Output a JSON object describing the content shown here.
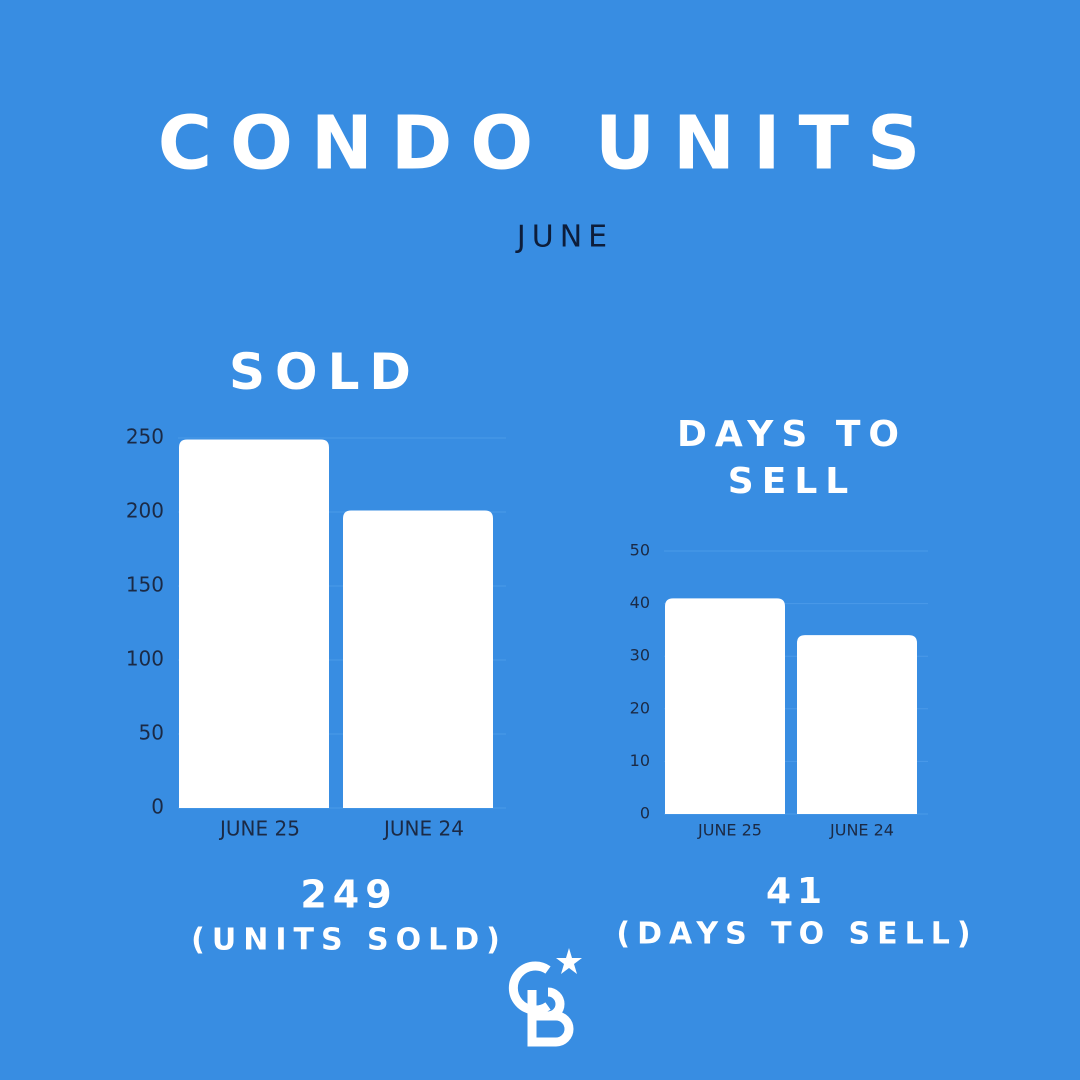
{
  "header": {
    "title": "CONDO UNITS",
    "subtitle": "JUNE"
  },
  "chart_data": [
    {
      "type": "bar",
      "title": "SOLD",
      "categories": [
        "JUNE 25",
        "JUNE 24"
      ],
      "values": [
        249,
        201
      ],
      "color": "#ffffff",
      "ylim": [
        0,
        250
      ],
      "yticks": [
        0,
        50,
        100,
        150,
        200,
        250
      ],
      "grid": true,
      "summary": {
        "value": "249",
        "label": "(UNITS SOLD)"
      }
    },
    {
      "type": "bar",
      "title": "DAYS TO SELL",
      "categories": [
        "JUNE 25",
        "JUNE 24"
      ],
      "values": [
        41,
        34
      ],
      "color": "#ffffff",
      "ylim": [
        0,
        50
      ],
      "yticks": [
        0,
        10,
        20,
        30,
        40,
        50
      ],
      "grid": true,
      "summary": {
        "value": "41",
        "label": "(DAYS TO SELL)"
      }
    }
  ]
}
